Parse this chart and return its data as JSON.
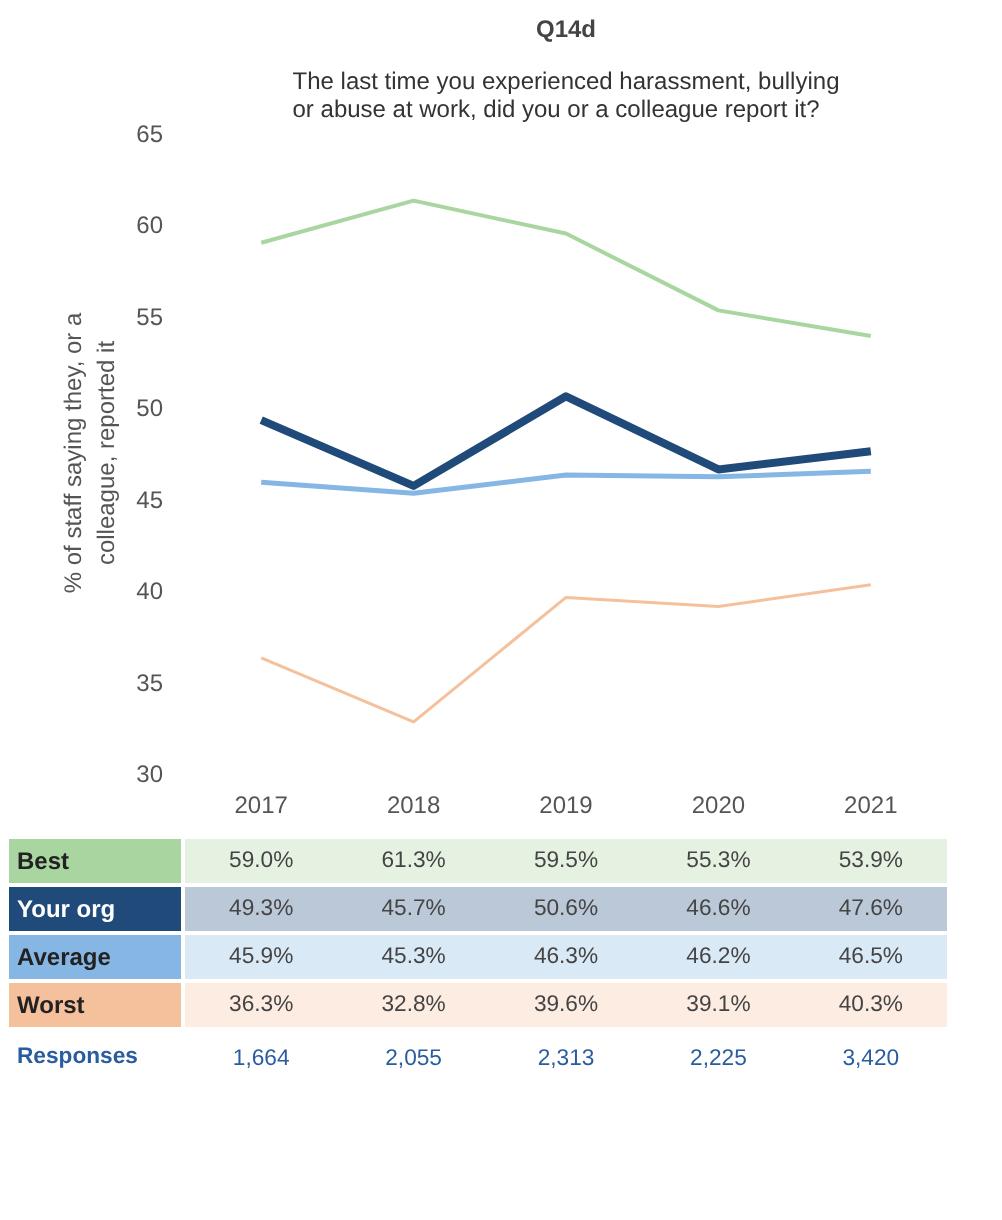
{
  "chart_data": {
    "type": "line",
    "title": "Q14d",
    "subtitle": "The last time you experienced harassment, bullying or abuse at work, did you or a colleague report it?",
    "ylabel": "% of staff saying they, or a colleague, reported it",
    "categories": [
      "2017",
      "2018",
      "2019",
      "2020",
      "2021"
    ],
    "ylim": [
      30,
      65
    ],
    "yticks": [
      30,
      35,
      40,
      45,
      50,
      55,
      60,
      65
    ],
    "grid": false,
    "legend": false,
    "series": [
      {
        "name": "Best",
        "color": "#a9d6a0",
        "values": [
          59.0,
          61.3,
          59.5,
          55.3,
          53.9
        ],
        "value_labels": [
          "59.0%",
          "61.3%",
          "59.5%",
          "55.3%",
          "53.9%"
        ]
      },
      {
        "name": "Your org",
        "color": "#1f4a7a",
        "values": [
          49.3,
          45.7,
          50.6,
          46.6,
          47.6
        ],
        "value_labels": [
          "49.3%",
          "45.7%",
          "50.6%",
          "46.6%",
          "47.6%"
        ]
      },
      {
        "name": "Average",
        "color": "#86b6e4",
        "values": [
          45.9,
          45.3,
          46.3,
          46.2,
          46.5
        ],
        "value_labels": [
          "45.9%",
          "45.3%",
          "46.3%",
          "46.2%",
          "46.5%"
        ]
      },
      {
        "name": "Worst",
        "color": "#f5c09c",
        "values": [
          36.3,
          32.8,
          39.6,
          39.1,
          40.3
        ],
        "value_labels": [
          "36.3%",
          "32.8%",
          "39.6%",
          "39.1%",
          "40.3%"
        ]
      }
    ],
    "annotations": [
      "Responses",
      "1,664",
      "2,055",
      "2,313",
      "2,225",
      "3,420"
    ]
  }
}
